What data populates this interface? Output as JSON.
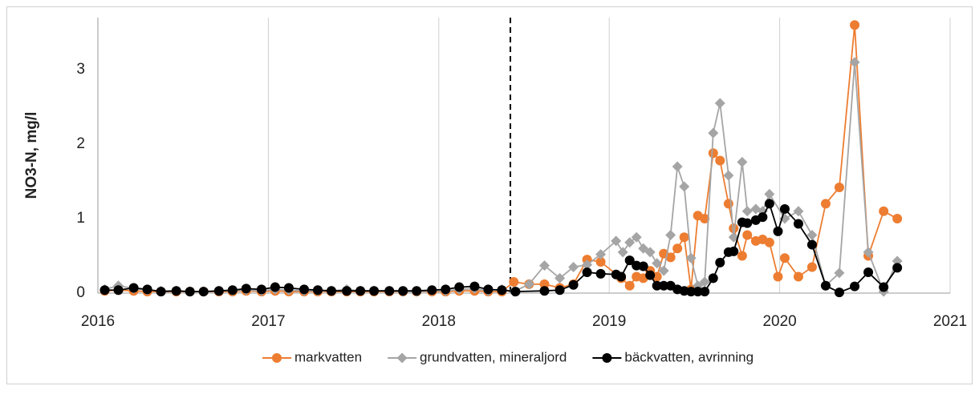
{
  "chart_data": {
    "type": "line",
    "ylabel": "NO3-N, mg/l",
    "xlim": [
      2016,
      2021
    ],
    "ylim": [
      0,
      3.7
    ],
    "xticks": [
      2016,
      2017,
      2018,
      2019,
      2020,
      2021
    ],
    "yticks": [
      0,
      1,
      2,
      3
    ],
    "x_grid": true,
    "vline": 2018.42,
    "legend": "bottom",
    "series": [
      {
        "name": "markvatten",
        "color": "#ed7d31",
        "marker": "circle",
        "x": [
          2016.04,
          2016.12,
          2016.21,
          2016.29,
          2016.37,
          2016.46,
          2016.54,
          2016.62,
          2016.71,
          2016.79,
          2016.87,
          2016.96,
          2017.04,
          2017.12,
          2017.21,
          2017.29,
          2017.37,
          2017.46,
          2017.54,
          2017.62,
          2017.71,
          2017.79,
          2017.87,
          2017.96,
          2018.04,
          2018.12,
          2018.21,
          2018.29,
          2018.37,
          2018.44,
          2018.53,
          2018.62,
          2018.71,
          2018.79,
          2018.87,
          2018.95,
          2019.07,
          2019.12,
          2019.16,
          2019.2,
          2019.24,
          2019.28,
          2019.32,
          2019.36,
          2019.4,
          2019.44,
          2019.48,
          2019.52,
          2019.56,
          2019.61,
          2019.65,
          2019.7,
          2019.73,
          2019.78,
          2019.81,
          2019.86,
          2019.9,
          2019.94,
          2019.99,
          2020.03,
          2020.11,
          2020.19,
          2020.27,
          2020.35,
          2020.44,
          2020.52,
          2020.61,
          2020.69
        ],
        "values": [
          0.03,
          0.04,
          0.03,
          0.02,
          0.02,
          0.02,
          0.02,
          0.02,
          0.02,
          0.02,
          0.03,
          0.02,
          0.03,
          0.02,
          0.02,
          0.02,
          0.02,
          0.02,
          0.02,
          0.02,
          0.02,
          0.02,
          0.02,
          0.02,
          0.02,
          0.03,
          0.03,
          0.02,
          0.02,
          0.15,
          0.12,
          0.12,
          0.07,
          0.12,
          0.45,
          0.42,
          0.2,
          0.1,
          0.22,
          0.2,
          0.3,
          0.22,
          0.53,
          0.48,
          0.6,
          0.75,
          0.05,
          1.04,
          1.0,
          1.88,
          1.78,
          1.2,
          0.87,
          0.5,
          0.78,
          0.7,
          0.72,
          0.68,
          0.22,
          0.47,
          0.22,
          0.35,
          1.2,
          1.42,
          3.6,
          0.5,
          1.1,
          1.0
        ]
      },
      {
        "name": "grundvatten, mineraljord",
        "color": "#a5a5a5",
        "marker": "diamond",
        "x": [
          2016.04,
          2016.12,
          2016.21,
          2016.29,
          2016.37,
          2016.46,
          2016.54,
          2016.62,
          2016.71,
          2016.79,
          2016.87,
          2016.96,
          2017.04,
          2017.12,
          2017.21,
          2017.29,
          2017.37,
          2017.46,
          2017.54,
          2017.62,
          2017.71,
          2017.79,
          2017.87,
          2017.96,
          2018.04,
          2018.12,
          2018.21,
          2018.29,
          2018.37,
          2018.44,
          2018.53,
          2018.62,
          2018.71,
          2018.79,
          2018.87,
          2018.95,
          2019.04,
          2019.08,
          2019.12,
          2019.16,
          2019.2,
          2019.24,
          2019.28,
          2019.32,
          2019.36,
          2019.4,
          2019.44,
          2019.48,
          2019.52,
          2019.56,
          2019.61,
          2019.65,
          2019.7,
          2019.73,
          2019.78,
          2019.81,
          2019.86,
          2019.9,
          2019.94,
          2020.03,
          2020.11,
          2020.19,
          2020.27,
          2020.35,
          2020.44,
          2020.52,
          2020.61,
          2020.69
        ],
        "values": [
          0.05,
          0.1,
          0.06,
          0.04,
          0.03,
          0.03,
          0.02,
          0.02,
          0.03,
          0.03,
          0.04,
          0.03,
          0.05,
          0.04,
          0.03,
          0.03,
          0.03,
          0.05,
          0.03,
          0.03,
          0.03,
          0.02,
          0.02,
          0.03,
          0.03,
          0.05,
          0.06,
          0.03,
          0.05,
          0.02,
          0.12,
          0.37,
          0.2,
          0.35,
          0.38,
          0.52,
          0.7,
          0.55,
          0.68,
          0.75,
          0.6,
          0.55,
          0.4,
          0.3,
          0.78,
          1.7,
          1.43,
          0.47,
          0.1,
          0.15,
          2.15,
          2.55,
          1.58,
          0.75,
          1.76,
          1.1,
          1.13,
          1.1,
          1.33,
          1.0,
          1.1,
          0.78,
          0.1,
          0.27,
          3.1,
          0.55,
          0.02,
          0.43
        ]
      },
      {
        "name": "bäckvatten, avrinning",
        "color": "#000000",
        "marker": "circle",
        "x": [
          2016.04,
          2016.12,
          2016.21,
          2016.29,
          2016.37,
          2016.46,
          2016.54,
          2016.62,
          2016.71,
          2016.79,
          2016.87,
          2016.96,
          2017.04,
          2017.12,
          2017.21,
          2017.29,
          2017.37,
          2017.46,
          2017.54,
          2017.62,
          2017.71,
          2017.79,
          2017.87,
          2017.96,
          2018.04,
          2018.12,
          2018.21,
          2018.29,
          2018.37,
          2018.45,
          2018.62,
          2018.71,
          2018.79,
          2018.87,
          2018.95,
          2019.04,
          2019.07,
          2019.12,
          2019.16,
          2019.2,
          2019.24,
          2019.28,
          2019.32,
          2019.36,
          2019.4,
          2019.44,
          2019.48,
          2019.52,
          2019.56,
          2019.61,
          2019.65,
          2019.7,
          2019.73,
          2019.78,
          2019.81,
          2019.86,
          2019.9,
          2019.94,
          2019.99,
          2020.03,
          2020.11,
          2020.19,
          2020.27,
          2020.35,
          2020.44,
          2020.52,
          2020.61,
          2020.69
        ],
        "values": [
          0.04,
          0.04,
          0.07,
          0.05,
          0.02,
          0.03,
          0.02,
          0.02,
          0.03,
          0.04,
          0.06,
          0.05,
          0.08,
          0.07,
          0.05,
          0.04,
          0.03,
          0.03,
          0.03,
          0.03,
          0.03,
          0.03,
          0.03,
          0.04,
          0.05,
          0.08,
          0.09,
          0.05,
          0.04,
          0.02,
          0.03,
          0.04,
          0.11,
          0.28,
          0.26,
          0.25,
          0.22,
          0.44,
          0.37,
          0.36,
          0.24,
          0.1,
          0.1,
          0.1,
          0.05,
          0.03,
          0.02,
          0.02,
          0.02,
          0.2,
          0.41,
          0.55,
          0.56,
          0.95,
          0.94,
          0.98,
          1.02,
          1.2,
          0.83,
          1.13,
          0.93,
          0.65,
          0.1,
          0.01,
          0.09,
          0.28,
          0.08,
          0.34
        ]
      }
    ]
  }
}
